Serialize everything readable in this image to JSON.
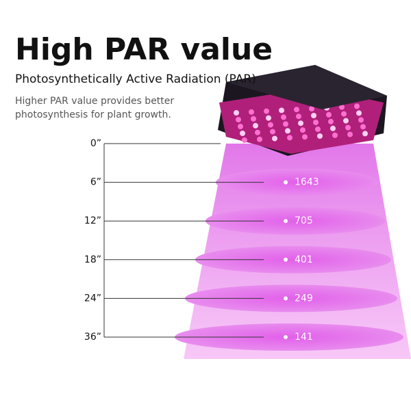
{
  "header": {
    "title": "High PAR value",
    "subtitle": "Photosynthetically Active Radiation (PAR)",
    "description": [
      "Higher PAR value provides better",
      "photosynthesis for plant growth."
    ]
  },
  "levels": [
    {
      "distance": "0”"
    },
    {
      "distance": "6”",
      "value": 1643
    },
    {
      "distance": "12”",
      "value": 705
    },
    {
      "distance": "18”",
      "value": 401
    },
    {
      "distance": "24”",
      "value": 249
    },
    {
      "distance": "36”",
      "value": 141
    }
  ]
}
